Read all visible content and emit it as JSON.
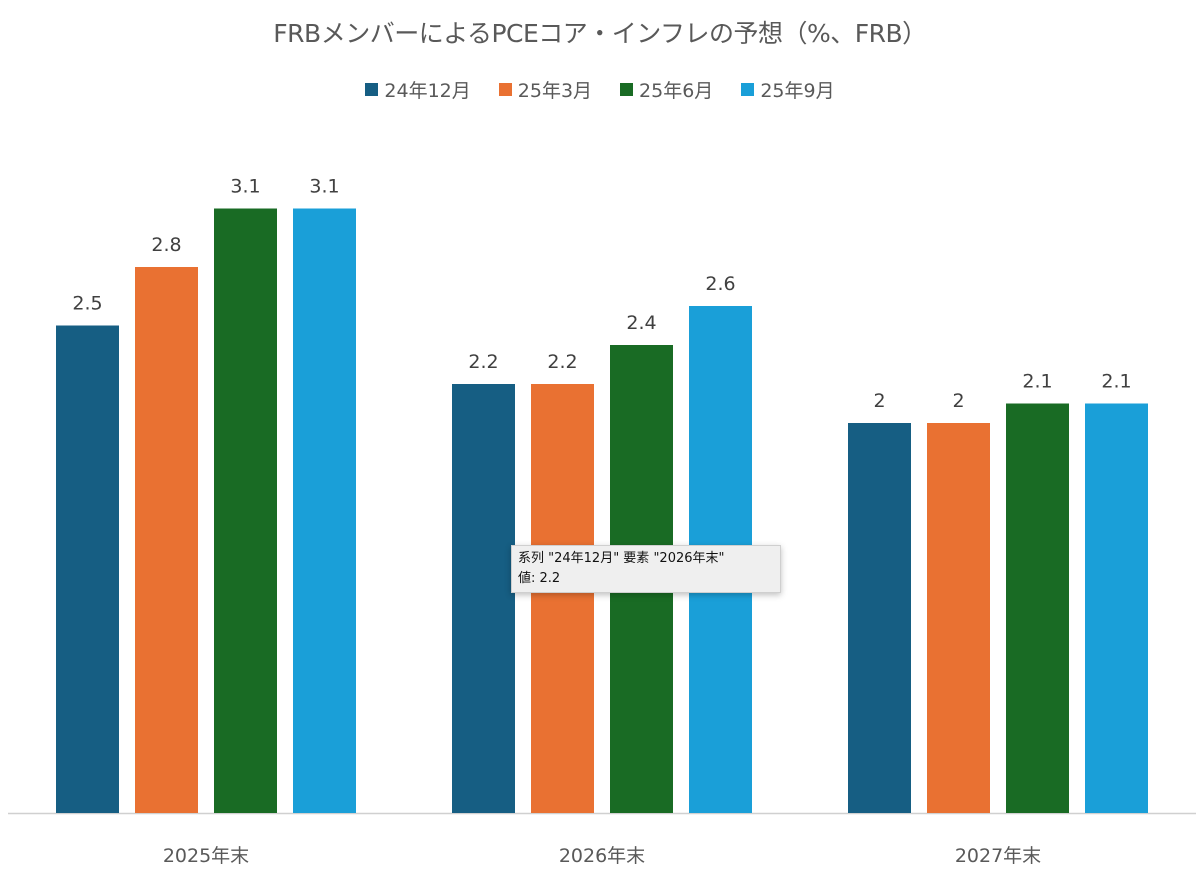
{
  "chart_data": {
    "type": "bar",
    "title": "FRBメンバーによるPCEコア・インフレの予想（%、FRB）",
    "xlabel": "",
    "ylabel": "",
    "categories": [
      "2025年末",
      "2026年末",
      "2027年末"
    ],
    "series": [
      {
        "name": "24年12月",
        "color": "#165E83",
        "values": [
          2.5,
          2.2,
          2.0
        ],
        "labels": [
          "2.5",
          "2.2",
          "2"
        ]
      },
      {
        "name": "25年3月",
        "color": "#E97132",
        "values": [
          2.8,
          2.2,
          2.0
        ],
        "labels": [
          "2.8",
          "2.2",
          "2"
        ]
      },
      {
        "name": "25年6月",
        "color": "#196B24",
        "values": [
          3.1,
          2.4,
          2.1
        ],
        "labels": [
          "3.1",
          "2.4",
          "2.1"
        ]
      },
      {
        "name": "25年9月",
        "color": "#1A9FD8",
        "values": [
          3.1,
          2.6,
          2.1
        ],
        "labels": [
          "3.1",
          "2.6",
          "2.1"
        ]
      }
    ],
    "ylim": [
      0,
      4.17
    ],
    "grid": false,
    "legend_position": "top"
  },
  "tooltip": {
    "line1": "系列 \"24年12月\" 要素 \"2026年末\"",
    "line2": "値: 2.2"
  }
}
